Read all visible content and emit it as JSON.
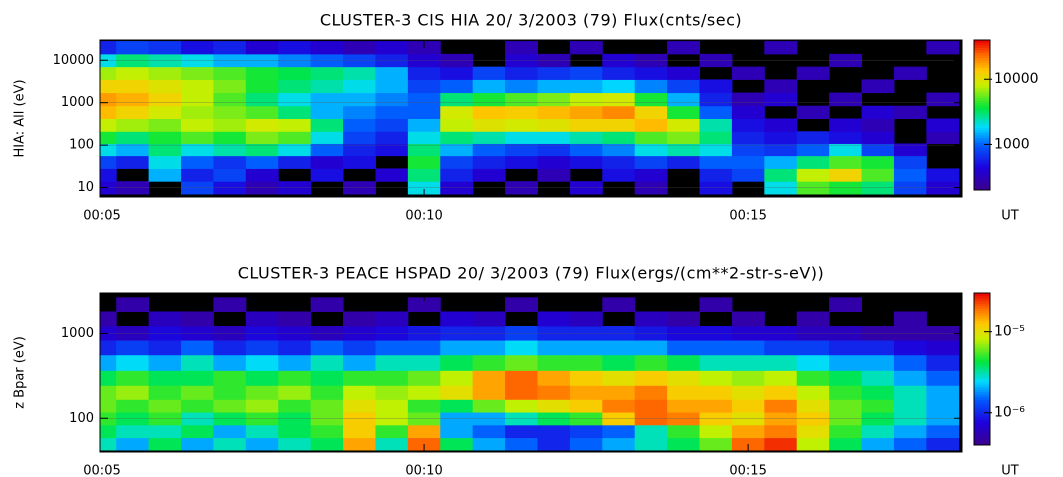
{
  "chart_data": [
    {
      "type": "heatmap",
      "title": "CLUSTER-3  CIS HIA 20/ 3/2003 (79) Flux(cnts/sec)",
      "ylabel": "HIA: All (eV)",
      "xlabel": "UT",
      "ylog": true,
      "clog": true,
      "grid": true,
      "colormap": "rainbow",
      "xlim": [
        5,
        18.3
      ],
      "xticks": [
        {
          "value": 5,
          "label": "00:05"
        },
        {
          "value": 10,
          "label": "00:10"
        },
        {
          "value": 15,
          "label": "00:15"
        }
      ],
      "ylim": [
        6,
        30000
      ],
      "yticks": [
        10,
        100,
        1000,
        10000
      ],
      "clim": [
        200,
        40000
      ],
      "cticks": [
        1000,
        10000
      ],
      "x": [
        5.0,
        5.5,
        6.0,
        6.5,
        7.0,
        7.5,
        8.0,
        8.5,
        9.0,
        9.5,
        10.0,
        10.5,
        11.0,
        11.5,
        12.0,
        12.5,
        13.0,
        13.5,
        14.0,
        14.5,
        15.0,
        15.5,
        16.0,
        16.5,
        17.0,
        17.5,
        18.0
      ],
      "y": [
        10,
        20,
        40,
        80,
        150,
        300,
        600,
        1200,
        2500,
        5000,
        10000,
        20000
      ],
      "values": [
        [
          400,
          300,
          null,
          800,
          500,
          300,
          400,
          null,
          300,
          null,
          2000,
          400,
          null,
          300,
          null,
          400,
          null,
          300,
          null,
          500,
          null,
          2000,
          5000,
          4000,
          3000,
          800,
          400
        ],
        [
          500,
          null,
          1500,
          600,
          800,
          400,
          null,
          500,
          null,
          400,
          3000,
          600,
          400,
          null,
          300,
          null,
          500,
          400,
          null,
          600,
          800,
          3000,
          8000,
          12000,
          5000,
          1000,
          500
        ],
        [
          800,
          600,
          2000,
          1000,
          700,
          1000,
          600,
          400,
          500,
          null,
          4000,
          800,
          600,
          500,
          400,
          500,
          600,
          800,
          600,
          1000,
          1000,
          1500,
          3000,
          5000,
          4000,
          800,
          null
        ],
        [
          2000,
          1500,
          3000,
          2000,
          2500,
          3000,
          2000,
          1000,
          600,
          500,
          3000,
          1500,
          1000,
          800,
          700,
          1000,
          1200,
          2000,
          2500,
          2000,
          800,
          700,
          1000,
          2000,
          800,
          400,
          null
        ],
        [
          4000,
          3000,
          4000,
          5000,
          4000,
          6000,
          5000,
          2000,
          800,
          600,
          2000,
          3000,
          2500,
          2000,
          2000,
          2500,
          3000,
          5000,
          6000,
          3000,
          600,
          500,
          600,
          500,
          400,
          null,
          300
        ],
        [
          8000,
          7000,
          6000,
          8000,
          7000,
          9000,
          8000,
          3000,
          1000,
          800,
          1500,
          8000,
          10000,
          9000,
          10000,
          12000,
          12000,
          15000,
          9000,
          2500,
          500,
          400,
          null,
          400,
          300,
          null,
          400
        ],
        [
          15000,
          12000,
          9000,
          7000,
          6000,
          5000,
          3000,
          1500,
          1200,
          1000,
          1000,
          9000,
          14000,
          13000,
          15000,
          17000,
          20000,
          12000,
          4000,
          1000,
          400,
          null,
          300,
          null,
          400,
          300,
          null
        ],
        [
          18000,
          16000,
          12000,
          8000,
          5000,
          3000,
          2000,
          1500,
          1500,
          1200,
          1000,
          3000,
          4000,
          5000,
          6000,
          8000,
          9000,
          4000,
          1500,
          600,
          300,
          400,
          null,
          300,
          null,
          null,
          300
        ],
        [
          12000,
          12000,
          10000,
          8000,
          6000,
          4000,
          3000,
          2500,
          2000,
          1500,
          800,
          1000,
          1500,
          1200,
          1500,
          1500,
          1800,
          1200,
          800,
          500,
          null,
          300,
          null,
          null,
          300,
          null,
          null
        ],
        [
          7000,
          8000,
          7000,
          6000,
          5000,
          4000,
          3500,
          3000,
          2500,
          1500,
          600,
          500,
          800,
          600,
          700,
          800,
          600,
          500,
          400,
          null,
          300,
          null,
          300,
          null,
          null,
          300,
          null
        ],
        [
          2000,
          3000,
          2500,
          2000,
          1500,
          1500,
          1200,
          1000,
          800,
          600,
          400,
          300,
          null,
          400,
          300,
          null,
          400,
          300,
          null,
          300,
          null,
          null,
          null,
          300,
          null,
          null,
          null
        ],
        [
          600,
          800,
          700,
          500,
          600,
          400,
          500,
          400,
          300,
          400,
          300,
          null,
          null,
          300,
          null,
          300,
          null,
          null,
          300,
          null,
          null,
          300,
          null,
          null,
          null,
          null,
          300
        ]
      ]
    },
    {
      "type": "heatmap",
      "title": "CLUSTER-3  PEACE HSPAD 20/ 3/2003 (79) Flux(ergs/(cm**2-str-s-eV))",
      "ylabel": "z Bpar (eV)",
      "xlabel": "UT",
      "ylog": true,
      "clog": true,
      "grid": true,
      "colormap": "rainbow",
      "xlim": [
        5,
        18.3
      ],
      "xticks": [
        {
          "value": 5,
          "label": "00:05"
        },
        {
          "value": 10,
          "label": "00:10"
        },
        {
          "value": 15,
          "label": "00:15"
        }
      ],
      "ylim": [
        40,
        3000
      ],
      "yticks": [
        100,
        1000
      ],
      "clim": [
        4e-07,
        3e-05
      ],
      "cticks": [
        {
          "value": 1e-05,
          "label": "10⁻⁵"
        },
        {
          "value": 1e-06,
          "label": "10⁻⁶"
        }
      ],
      "x": [
        5.0,
        5.5,
        6.0,
        6.5,
        7.0,
        7.5,
        8.0,
        8.5,
        9.0,
        9.5,
        10.0,
        10.5,
        11.0,
        11.5,
        12.0,
        12.5,
        13.0,
        13.5,
        14.0,
        14.5,
        15.0,
        15.5,
        16.0,
        16.5,
        17.0,
        17.5,
        18.0
      ],
      "y": [
        50,
        70,
        100,
        140,
        200,
        300,
        450,
        700,
        1000,
        1500,
        2200
      ],
      "values": [
        [
          3e-06,
          2e-06,
          4e-06,
          2e-06,
          3e-06,
          2e-06,
          3e-06,
          4e-06,
          1.5e-05,
          3e-06,
          2e-05,
          4e-06,
          2e-06,
          1.5e-06,
          1e-06,
          1.5e-06,
          2e-06,
          3e-06,
          4e-06,
          6e-06,
          2e-05,
          2.5e-05,
          8e-06,
          4e-06,
          2e-06,
          1.5e-06,
          1e-06
        ],
        [
          4e-06,
          3e-06,
          3e-06,
          4e-06,
          2e-06,
          3e-06,
          4e-06,
          5e-06,
          1.2e-05,
          5e-06,
          1.5e-05,
          2e-06,
          1.5e-06,
          1e-06,
          1e-06,
          1.2e-06,
          1.5e-06,
          3e-06,
          5e-06,
          8e-06,
          1.5e-05,
          1.8e-05,
          1e-05,
          5e-06,
          3e-06,
          2e-06,
          1.5e-06
        ],
        [
          5e-06,
          4e-06,
          5e-06,
          3e-06,
          4e-06,
          5e-06,
          4e-06,
          6e-06,
          1.2e-05,
          8e-06,
          6e-06,
          2e-06,
          2e-06,
          3e-06,
          4e-06,
          5e-06,
          1.2e-05,
          2e-05,
          1.8e-05,
          1.2e-05,
          1e-05,
          1.5e-05,
          1.2e-05,
          6e-06,
          4e-06,
          3e-06,
          2e-06
        ],
        [
          6e-06,
          5e-06,
          6e-06,
          5e-06,
          6e-06,
          7e-06,
          5e-06,
          6e-06,
          1e-05,
          8e-06,
          5e-06,
          4e-06,
          6e-06,
          8e-06,
          1e-05,
          1.2e-05,
          1.8e-05,
          2e-05,
          1.5e-05,
          1.5e-05,
          1.2e-05,
          1.8e-05,
          1e-05,
          6e-06,
          5e-06,
          3e-06,
          2e-06
        ],
        [
          6e-06,
          7e-06,
          5e-06,
          6e-06,
          5e-06,
          6e-06,
          7e-06,
          5e-06,
          8e-06,
          7e-06,
          8e-06,
          1e-05,
          1.5e-05,
          2e-05,
          1.8e-05,
          1.5e-05,
          1.5e-05,
          1.8e-05,
          1.2e-05,
          1.2e-05,
          1e-05,
          1.2e-05,
          8e-06,
          5e-06,
          4e-06,
          3e-06,
          2e-06
        ],
        [
          4e-06,
          5e-06,
          4e-06,
          4e-06,
          5e-06,
          4e-06,
          5e-06,
          4e-06,
          5e-06,
          5e-06,
          6e-06,
          8e-06,
          1.5e-05,
          2e-05,
          1.5e-05,
          1.2e-05,
          1e-05,
          1.2e-05,
          1e-05,
          8e-06,
          7e-06,
          8e-06,
          5e-06,
          4e-06,
          3e-06,
          2e-06,
          1.5e-06
        ],
        [
          2e-06,
          2.5e-06,
          2e-06,
          3e-06,
          2e-06,
          2.5e-06,
          2e-06,
          3e-06,
          2e-06,
          3e-06,
          3e-06,
          4e-06,
          5e-06,
          6e-06,
          5e-06,
          5e-06,
          4e-06,
          5e-06,
          4e-06,
          3e-06,
          3e-06,
          3e-06,
          2.5e-06,
          2e-06,
          2e-06,
          1.5e-06,
          1e-06
        ],
        [
          1e-06,
          1.2e-06,
          1e-06,
          1.5e-06,
          1e-06,
          1.2e-06,
          1e-06,
          1.5e-06,
          1.2e-06,
          1.5e-06,
          1.5e-06,
          2e-06,
          2e-06,
          2.5e-06,
          2e-06,
          2e-06,
          2e-06,
          2e-06,
          1.5e-06,
          1.5e-06,
          1.5e-06,
          1.2e-06,
          1.2e-06,
          1e-06,
          1e-06,
          8e-07,
          7e-07
        ],
        [
          7e-07,
          6e-07,
          8e-07,
          7e-07,
          6e-07,
          8e-07,
          7e-07,
          6e-07,
          7e-07,
          8e-07,
          9e-07,
          1e-06,
          1e-06,
          1.2e-06,
          1e-06,
          1e-06,
          1e-06,
          9e-07,
          8e-07,
          8e-07,
          7e-07,
          7e-07,
          6e-07,
          6e-07,
          5e-07,
          5e-07,
          5e-07
        ],
        [
          5e-07,
          null,
          6e-07,
          5e-07,
          null,
          6e-07,
          5e-07,
          null,
          5e-07,
          6e-07,
          null,
          7e-07,
          6e-07,
          null,
          7e-07,
          6e-07,
          null,
          6e-07,
          5e-07,
          null,
          5e-07,
          null,
          5e-07,
          null,
          null,
          5e-07,
          null
        ],
        [
          null,
          5e-07,
          null,
          null,
          5e-07,
          null,
          null,
          5e-07,
          null,
          null,
          5e-07,
          null,
          null,
          5e-07,
          null,
          null,
          5e-07,
          null,
          null,
          5e-07,
          null,
          null,
          null,
          5e-07,
          null,
          null,
          null
        ]
      ]
    }
  ]
}
